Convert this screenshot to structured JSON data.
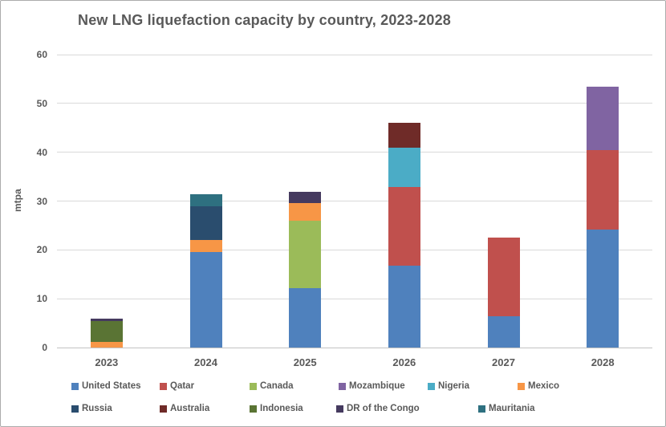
{
  "chart_data": {
    "type": "bar",
    "stacked": true,
    "title": "New LNG liquefaction capacity by country, 2023-2028",
    "xlabel": "",
    "ylabel": "mtpa",
    "ylim": [
      0,
      60
    ],
    "yticks": [
      0,
      10,
      20,
      30,
      40,
      50,
      60
    ],
    "grid": true,
    "legend_position": "bottom",
    "categories": [
      "2023",
      "2024",
      "2025",
      "2026",
      "2027",
      "2028"
    ],
    "series": [
      {
        "name": "United States",
        "color": "#4F81BD",
        "values": [
          0,
          19.5,
          12.1,
          16.7,
          6.4,
          24.1
        ]
      },
      {
        "name": "Qatar",
        "color": "#C0504D",
        "values": [
          0,
          0,
          0,
          16.2,
          16.1,
          16.4
        ]
      },
      {
        "name": "Canada",
        "color": "#9BBB59",
        "values": [
          0,
          0,
          13.9,
          0,
          0,
          0
        ]
      },
      {
        "name": "Mozambique",
        "color": "#8064A2",
        "values": [
          0,
          0,
          0,
          0,
          0,
          12.9
        ]
      },
      {
        "name": "Nigeria",
        "color": "#4BACC6",
        "values": [
          0,
          0,
          0,
          8.0,
          0,
          0
        ]
      },
      {
        "name": "Mexico",
        "color": "#F79646",
        "values": [
          1.1,
          2.6,
          3.6,
          0,
          0,
          0
        ]
      },
      {
        "name": "Russia",
        "color": "#2A4D6E",
        "values": [
          0,
          6.9,
          0,
          0,
          0,
          0
        ]
      },
      {
        "name": "Australia",
        "color": "#6F2B28",
        "values": [
          0,
          0,
          0,
          5.1,
          0,
          0
        ]
      },
      {
        "name": "Indonesia",
        "color": "#5A7434",
        "values": [
          4.3,
          0,
          0,
          0,
          0,
          0
        ]
      },
      {
        "name": "DR of the Congo",
        "color": "#453A5F",
        "values": [
          0.6,
          0,
          2.3,
          0,
          0,
          0
        ]
      },
      {
        "name": "Mauritania",
        "color": "#2E7080",
        "values": [
          0,
          2.4,
          0,
          0,
          0,
          0
        ]
      }
    ],
    "totals": [
      6.0,
      31.4,
      31.9,
      46.0,
      22.5,
      53.4
    ]
  }
}
